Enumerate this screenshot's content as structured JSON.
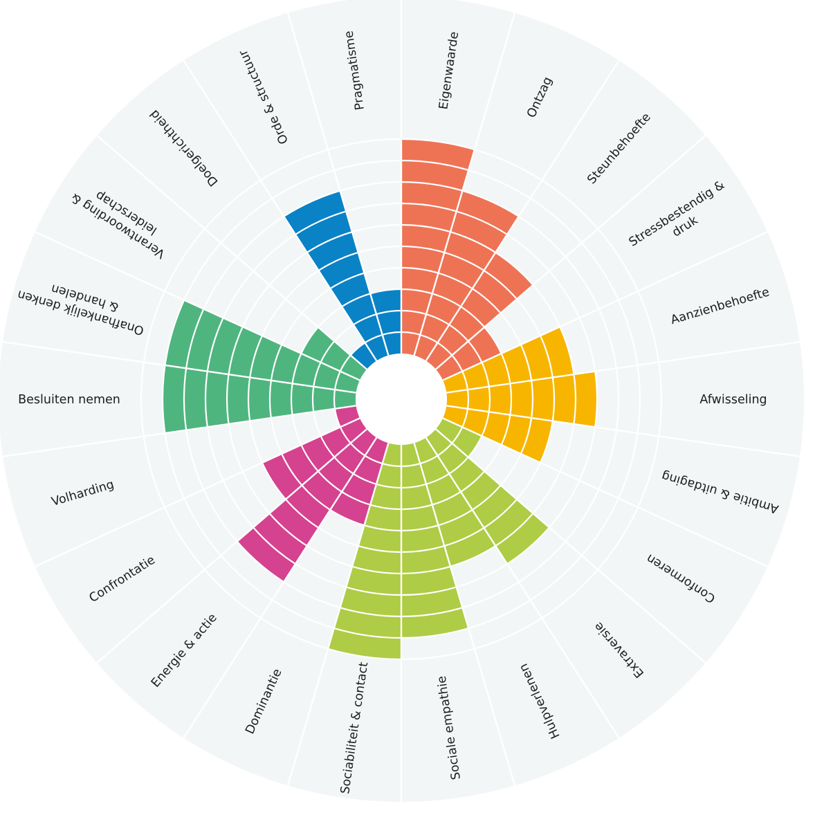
{
  "chart_data": {
    "type": "polar-bar",
    "title": "",
    "scale_max": 10,
    "colors": {
      "orange": "#EE7355",
      "yellow": "#F7B500",
      "lime": "#AECC45",
      "magenta": "#D5428F",
      "green": "#4FB57F",
      "blue": "#0A82C6",
      "background": "#F3F6F6",
      "ring": "#FFFFFF"
    },
    "categories": [
      {
        "label": [
          "Eigenwaarde"
        ],
        "value": 10,
        "color": "orange"
      },
      {
        "label": [
          "Ontzag"
        ],
        "value": 8,
        "color": "orange"
      },
      {
        "label": [
          "Steunbehoefte"
        ],
        "value": 6,
        "color": "orange"
      },
      {
        "label": [
          "Stressbestendig &",
          "druk"
        ],
        "value": 3,
        "color": "orange"
      },
      {
        "label": [
          "Aanzienbehoefte"
        ],
        "value": 6,
        "color": "yellow"
      },
      {
        "label": [
          "Afwisseling"
        ],
        "value": 7,
        "color": "yellow"
      },
      {
        "label": [
          "Ambitie & uitdaging"
        ],
        "value": 5,
        "color": "yellow"
      },
      {
        "label": [
          "Conformeren"
        ],
        "value": 2,
        "color": "lime"
      },
      {
        "label": [
          "Extraversie"
        ],
        "value": 7,
        "color": "lime"
      },
      {
        "label": [
          "Hulpverlenen"
        ],
        "value": 6,
        "color": "lime"
      },
      {
        "label": [
          "Sociale empathie"
        ],
        "value": 9,
        "color": "lime"
      },
      {
        "label": [
          "Sociabiliteit & contact"
        ],
        "value": 10,
        "color": "lime"
      },
      {
        "label": [
          "Dominantie"
        ],
        "value": 4,
        "color": "magenta"
      },
      {
        "label": [
          "Energie & actie"
        ],
        "value": 8,
        "color": "magenta"
      },
      {
        "label": [
          "Confrontatie"
        ],
        "value": 5,
        "color": "magenta"
      },
      {
        "label": [
          "Volharding"
        ],
        "value": 1,
        "color": "magenta"
      },
      {
        "label": [
          "Besluiten nemen"
        ],
        "value": 9,
        "color": "green"
      },
      {
        "label": [
          "Onafhankelijk denken",
          "& handelen"
        ],
        "value": 9,
        "color": "green"
      },
      {
        "label": [
          "Verantwoording &",
          "leiderschap"
        ],
        "value": 3,
        "color": "green"
      },
      {
        "label": [
          "Doelgerichtheid"
        ],
        "value": 1,
        "color": "blue"
      },
      {
        "label": [
          "Orde & structuur"
        ],
        "value": 8,
        "color": "blue"
      },
      {
        "label": [
          "Pragmatisme"
        ],
        "value": 3,
        "color": "blue"
      }
    ]
  }
}
